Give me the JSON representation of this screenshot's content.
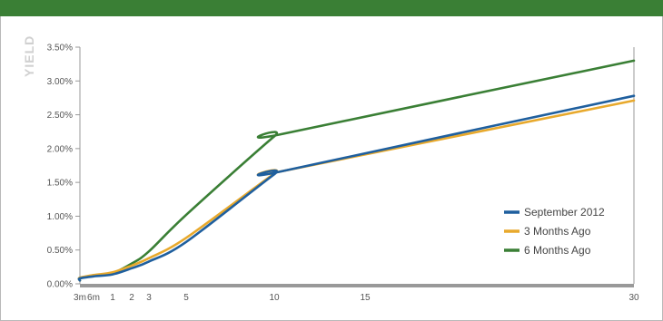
{
  "colors": {
    "header": "#3a7f35"
  },
  "chart_data": {
    "type": "line",
    "title": "",
    "xlabel": "",
    "ylabel": "YIELD",
    "x_tick_labels": [
      {
        "x": 0.25,
        "label": "3m"
      },
      {
        "x": 0.5,
        "label": "6m"
      },
      {
        "x": 1,
        "label": "1"
      },
      {
        "x": 2,
        "label": "2"
      },
      {
        "x": 3,
        "label": "3"
      },
      {
        "x": 5,
        "label": "5"
      },
      {
        "x": 10,
        "label": "10"
      },
      {
        "x": 15,
        "label": "15"
      },
      {
        "x": 30,
        "label": "30"
      }
    ],
    "y_ticks": [
      {
        "value": 0.0,
        "label": "0.00%"
      },
      {
        "value": 0.5,
        "label": "0.50%"
      },
      {
        "value": 1.0,
        "label": "1.00%"
      },
      {
        "value": 1.5,
        "label": "1.50%"
      },
      {
        "value": 2.0,
        "label": "2.00%"
      },
      {
        "value": 2.5,
        "label": "2.50%"
      },
      {
        "value": 3.0,
        "label": "3.00%"
      },
      {
        "value": 3.5,
        "label": "3.50%"
      }
    ],
    "ylim": [
      0,
      3.5
    ],
    "legend_position": "right",
    "series": [
      {
        "name": "September 2012",
        "color": "#1f5f9e",
        "points": [
          [
            0.0,
            0.05
          ],
          [
            0.25,
            0.08
          ],
          [
            0.5,
            0.11
          ],
          [
            1,
            0.14
          ],
          [
            2,
            0.23
          ],
          [
            3,
            0.33
          ],
          [
            5,
            0.62
          ],
          [
            10,
            1.62
          ],
          [
            10.5,
            1.67
          ],
          [
            30,
            2.78
          ]
        ]
      },
      {
        "name": "3 Months Ago",
        "color": "#e8a92c",
        "points": [
          [
            0.0,
            0.05
          ],
          [
            0.25,
            0.09
          ],
          [
            0.5,
            0.13
          ],
          [
            1,
            0.17
          ],
          [
            2,
            0.27
          ],
          [
            3,
            0.38
          ],
          [
            5,
            0.68
          ],
          [
            10,
            1.63
          ],
          [
            10.5,
            1.67
          ],
          [
            30,
            2.71
          ]
        ]
      },
      {
        "name": "6 Months Ago",
        "color": "#3a7f35",
        "points": [
          [
            0.0,
            0.05
          ],
          [
            0.25,
            0.09
          ],
          [
            0.5,
            0.12
          ],
          [
            1,
            0.16
          ],
          [
            2,
            0.3
          ],
          [
            3,
            0.48
          ],
          [
            5,
            1.02
          ],
          [
            10,
            2.18
          ],
          [
            10.5,
            2.22
          ],
          [
            30,
            3.3
          ]
        ]
      }
    ]
  }
}
